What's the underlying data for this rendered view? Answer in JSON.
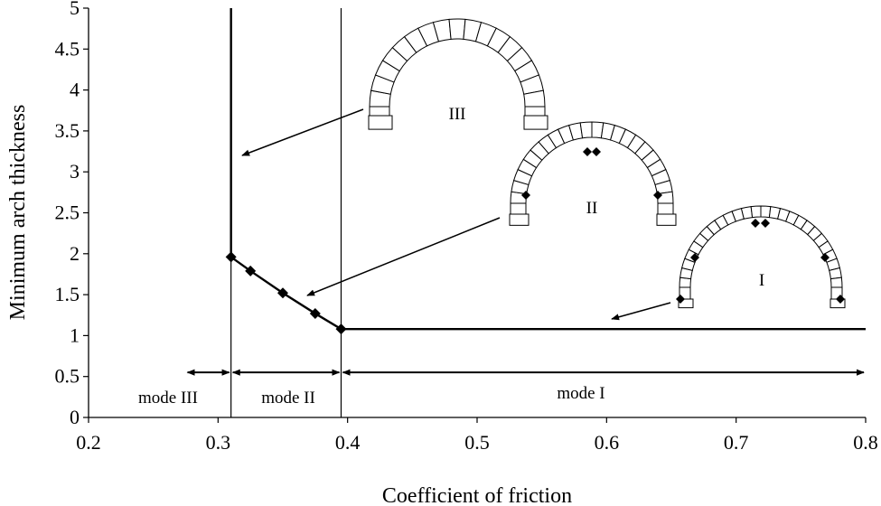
{
  "chart_data": {
    "type": "line",
    "xlabel": "Coefficient of friction",
    "ylabel": "Minimum arch thickness",
    "xlim": [
      0.2,
      0.8
    ],
    "ylim": [
      0,
      5
    ],
    "xticks": [
      "0.2",
      "0.3",
      "0.4",
      "0.5",
      "0.6",
      "0.7",
      "0.8"
    ],
    "yticks": [
      "0",
      "0.5",
      "1",
      "1.5",
      "2",
      "2.5",
      "3",
      "3.5",
      "4",
      "4.5",
      "5"
    ],
    "grid": false,
    "series": [
      {
        "x": [
          0.31,
          0.325,
          0.35,
          0.375,
          0.395
        ],
        "y": [
          1.96,
          1.79,
          1.52,
          1.27,
          1.08
        ]
      }
    ],
    "curve_x": [
      0.31,
      0.31,
      0.325,
      0.35,
      0.375,
      0.395,
      0.8
    ],
    "curve_y": [
      5,
      1.96,
      1.79,
      1.52,
      1.27,
      1.08,
      1.08
    ],
    "boundaries": [
      0.31,
      0.395
    ],
    "modes": [
      {
        "label": "mode III",
        "x_from": 0.275,
        "x_to": 0.31
      },
      {
        "label": "mode II",
        "x_from": 0.31,
        "x_to": 0.395
      },
      {
        "label": "mode I",
        "x_from": 0.395,
        "x_to": 0.8
      }
    ],
    "arch_labels": [
      "III",
      "II",
      "I"
    ]
  }
}
